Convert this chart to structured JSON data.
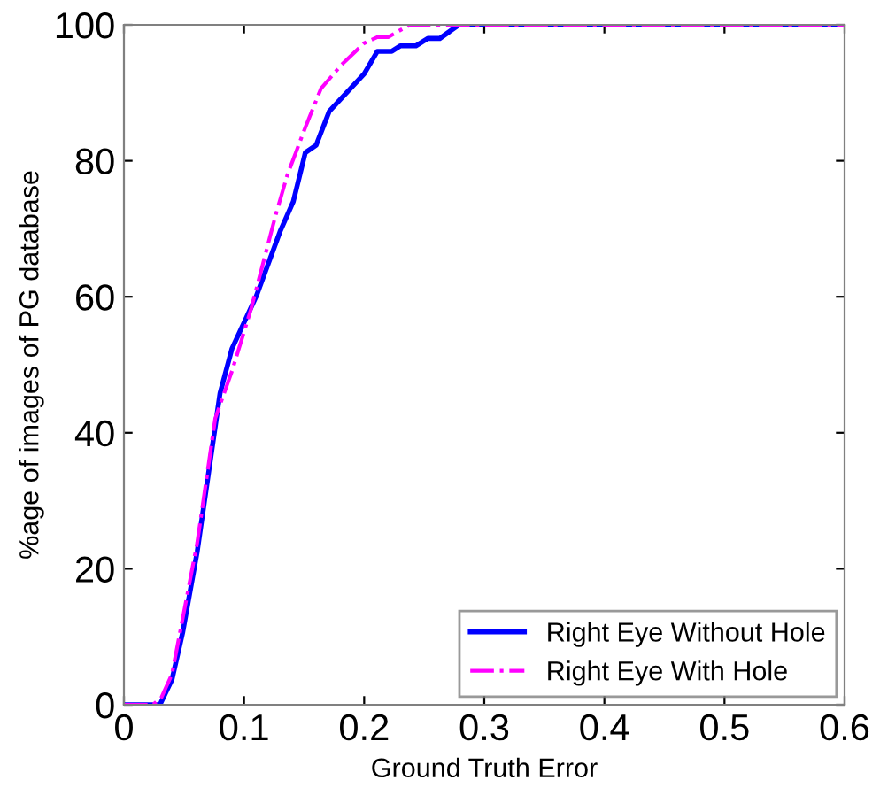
{
  "chart_data": {
    "type": "line",
    "xlabel": "Ground Truth Error",
    "ylabel": "%age of images of PG database",
    "xlim": [
      0,
      0.6
    ],
    "ylim": [
      0,
      100
    ],
    "xticks": [
      0,
      0.1,
      0.2,
      0.3,
      0.4,
      0.5,
      0.6
    ],
    "yticks": [
      0,
      20,
      40,
      60,
      80,
      100
    ],
    "grid": false,
    "legend": "bottom right",
    "marker": "none",
    "series": [
      {
        "name": "Right Eye Without Hole",
        "color": "#0000ff",
        "line_style": "solid",
        "x": [
          0,
          0.03,
          0.04,
          0.049,
          0.061,
          0.08,
          0.09,
          0.11,
          0.13,
          0.141,
          0.151,
          0.16,
          0.171,
          0.2,
          0.211,
          0.223,
          0.23,
          0.243,
          0.253,
          0.263,
          0.279,
          0.6
        ],
        "values": [
          0,
          0,
          3.7,
          10.7,
          22.5,
          45.8,
          52.4,
          60,
          69.6,
          74,
          81.2,
          82.3,
          87.3,
          92.8,
          96.1,
          96.1,
          96.9,
          96.9,
          98,
          98,
          100,
          100
        ]
      },
      {
        "name": "Right Eye With Hole",
        "color": "#ff00ff",
        "line_style": "dashdot",
        "x": [
          0,
          0.024,
          0.031,
          0.04,
          0.061,
          0.076,
          0.09,
          0.106,
          0.126,
          0.136,
          0.151,
          0.164,
          0.181,
          0.2,
          0.211,
          0.22,
          0.238,
          0.6
        ],
        "values": [
          0,
          0,
          1,
          4.5,
          23.8,
          42.1,
          49.1,
          58.3,
          71.8,
          77.9,
          84.9,
          90.6,
          94.1,
          97.3,
          98.2,
          98.2,
          100,
          100
        ]
      }
    ]
  }
}
